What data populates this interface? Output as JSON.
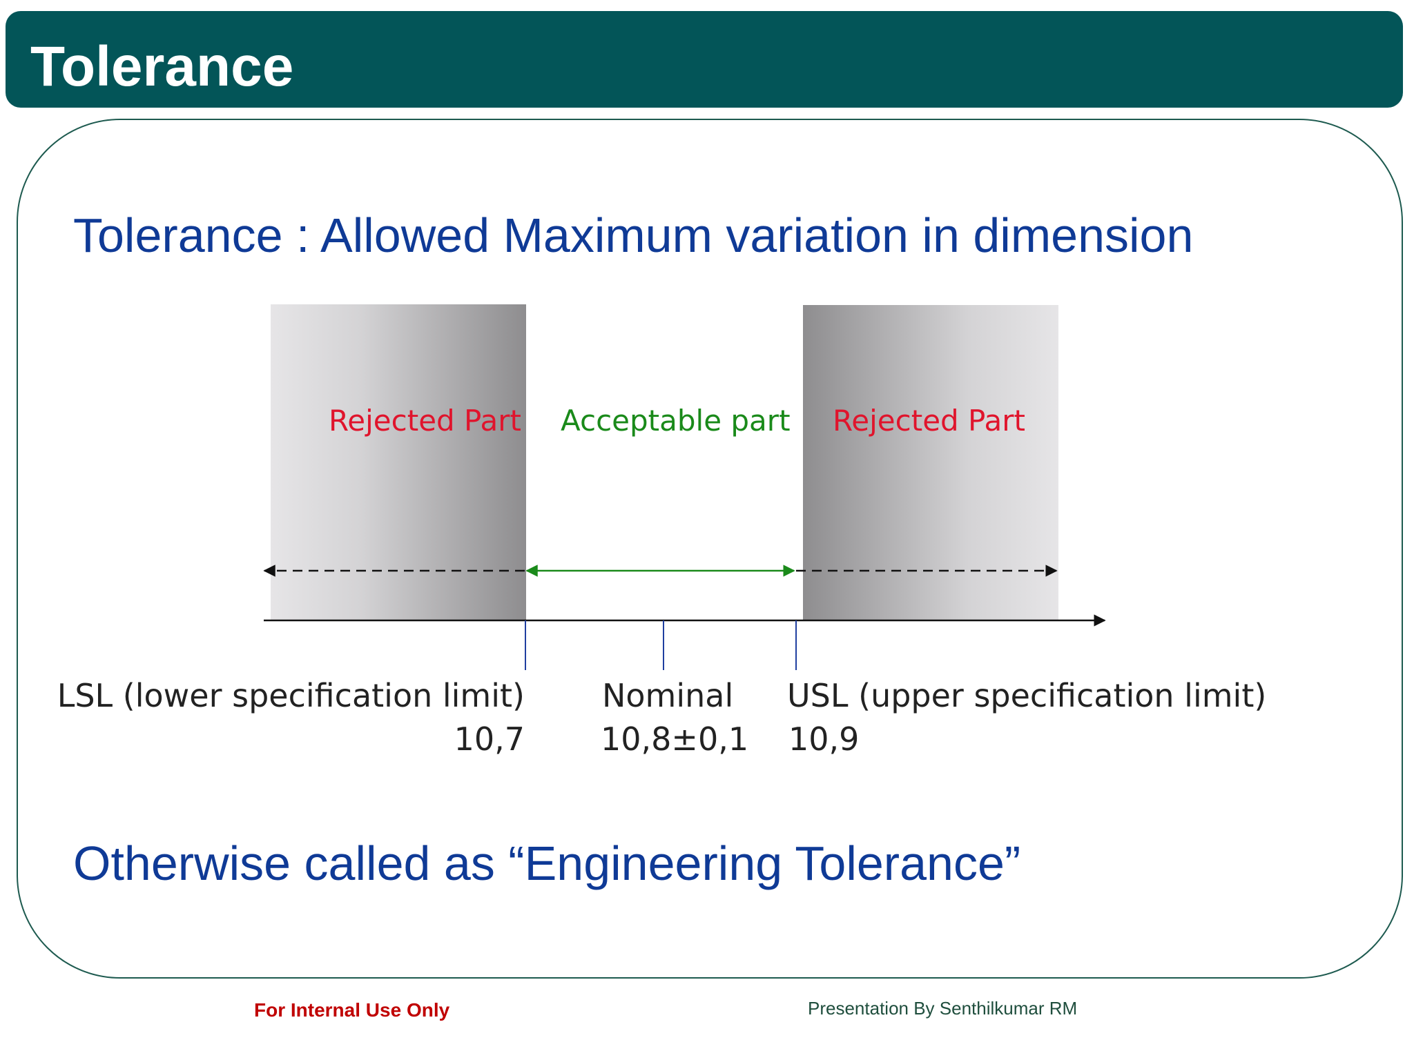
{
  "header": {
    "title": "Tolerance"
  },
  "content": {
    "definition": "Tolerance : Allowed Maximum variation in dimension",
    "alias": "Otherwise called as “Engineering Tolerance”"
  },
  "diagram": {
    "zones": {
      "left_rejected": "Rejected Part",
      "acceptable": "Acceptable part",
      "right_rejected": "Rejected Part"
    },
    "limits": {
      "lsl_label": "LSL (lower specification limit)",
      "lsl_value": "10,7",
      "nominal_label": "Nominal",
      "nominal_value": "10,8±0,1",
      "usl_label": "USL (upper specification limit)",
      "usl_value": "10,9"
    },
    "colors": {
      "rejected_text": "#e0142c",
      "acceptable_text": "#1a8a1a",
      "acceptable_arrow": "#1a8a1a",
      "limit_line": "#1f3fa0",
      "rejected_zone_dark": "#8f8e90",
      "rejected_zone_light": "#e5e4e6"
    }
  },
  "footer": {
    "left": "For Internal Use Only",
    "right": "Presentation By Senthilkumar RM"
  }
}
